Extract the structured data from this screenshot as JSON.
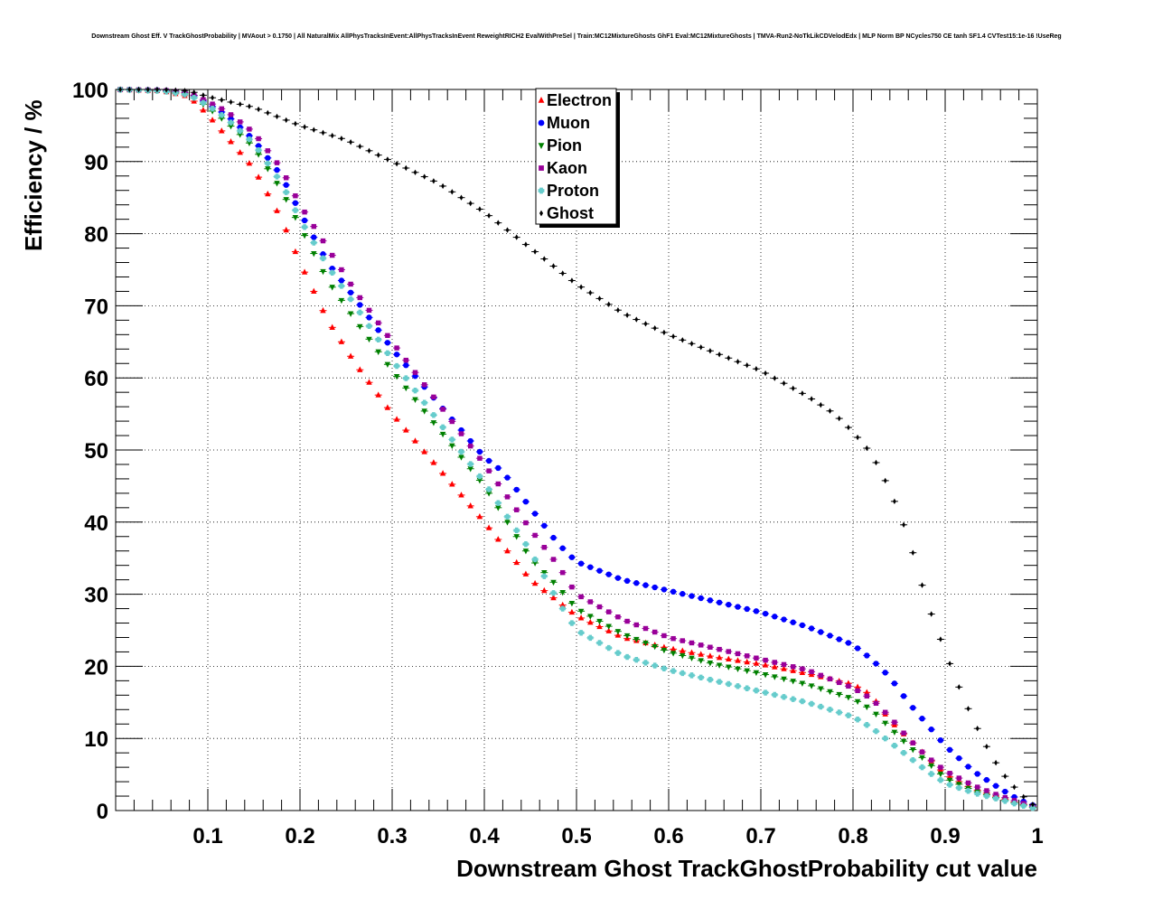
{
  "chart_data": {
    "type": "scatter",
    "title": "Downstream Ghost Eff. V TrackGhostProbability | MVAout > 0.1750 | All NaturalMix AllPhysTracksInEvent:AllPhysTracksInEvent ReweightRICH2 EvalWithPreSel | Train:MC12MixtureGhosts GhF1 Eval:MC12MixtureGhosts | TMVA-Run2-NoTkLikCDVelodEdx | MLP Norm BP NCycles750 CE tanh SF1.4 CVTest15:1e-16 !UseReg",
    "xlabel": "Downstream Ghost TrackGhostProbability cut value",
    "ylabel": "Efficiency / %",
    "xlim": [
      0,
      1
    ],
    "ylim": [
      0,
      100
    ],
    "xticks": [
      "0.1",
      "0.2",
      "0.3",
      "0.4",
      "0.5",
      "0.6",
      "0.7",
      "0.8",
      "0.9",
      "1"
    ],
    "yticks": [
      "0",
      "10",
      "20",
      "30",
      "40",
      "50",
      "60",
      "70",
      "80",
      "90",
      "100"
    ],
    "grid": true,
    "legend_position": "top-center",
    "series": [
      {
        "name": "Electron",
        "color": "#ff0000",
        "marker": "triangle-up",
        "knots": [
          [
            0,
            100
          ],
          [
            0.05,
            99.8
          ],
          [
            0.08,
            99
          ],
          [
            0.1,
            96.5
          ],
          [
            0.12,
            93.5
          ],
          [
            0.15,
            89
          ],
          [
            0.18,
            82
          ],
          [
            0.2,
            76
          ],
          [
            0.23,
            68
          ],
          [
            0.26,
            62
          ],
          [
            0.3,
            55
          ],
          [
            0.35,
            47.5
          ],
          [
            0.4,
            40
          ],
          [
            0.45,
            32
          ],
          [
            0.48,
            29
          ],
          [
            0.5,
            27
          ],
          [
            0.55,
            24
          ],
          [
            0.6,
            22.5
          ],
          [
            0.65,
            21.3
          ],
          [
            0.7,
            20.3
          ],
          [
            0.75,
            19
          ],
          [
            0.8,
            17.5
          ],
          [
            0.82,
            16
          ],
          [
            0.84,
            12.5
          ],
          [
            0.86,
            10
          ],
          [
            0.88,
            7.5
          ],
          [
            0.9,
            5
          ],
          [
            0.93,
            3
          ],
          [
            0.96,
            1.8
          ],
          [
            0.98,
            1
          ],
          [
            1,
            0.3
          ]
        ]
      },
      {
        "name": "Muon",
        "color": "#0000ff",
        "marker": "circle",
        "knots": [
          [
            0,
            100
          ],
          [
            0.05,
            99.9
          ],
          [
            0.08,
            99.5
          ],
          [
            0.1,
            98
          ],
          [
            0.12,
            96.5
          ],
          [
            0.15,
            93
          ],
          [
            0.18,
            88
          ],
          [
            0.2,
            83
          ],
          [
            0.23,
            76
          ],
          [
            0.26,
            71
          ],
          [
            0.3,
            64
          ],
          [
            0.35,
            56.5
          ],
          [
            0.4,
            49
          ],
          [
            0.42,
            47
          ],
          [
            0.45,
            42
          ],
          [
            0.48,
            37
          ],
          [
            0.5,
            34.5
          ],
          [
            0.55,
            32
          ],
          [
            0.6,
            30.5
          ],
          [
            0.65,
            29
          ],
          [
            0.7,
            27.5
          ],
          [
            0.75,
            25.5
          ],
          [
            0.8,
            23
          ],
          [
            0.82,
            21
          ],
          [
            0.84,
            18.5
          ],
          [
            0.86,
            15
          ],
          [
            0.88,
            12
          ],
          [
            0.9,
            9
          ],
          [
            0.93,
            5.5
          ],
          [
            0.96,
            3
          ],
          [
            0.98,
            1.5
          ],
          [
            1,
            0.5
          ]
        ]
      },
      {
        "name": "Pion",
        "color": "#008000",
        "marker": "triangle-down",
        "knots": [
          [
            0,
            100
          ],
          [
            0.05,
            99.8
          ],
          [
            0.08,
            99.3
          ],
          [
            0.1,
            97.5
          ],
          [
            0.12,
            95.5
          ],
          [
            0.15,
            92
          ],
          [
            0.18,
            86
          ],
          [
            0.2,
            81
          ],
          [
            0.23,
            73.5
          ],
          [
            0.26,
            68
          ],
          [
            0.3,
            61
          ],
          [
            0.35,
            53
          ],
          [
            0.4,
            45
          ],
          [
            0.45,
            35
          ],
          [
            0.48,
            31
          ],
          [
            0.5,
            28
          ],
          [
            0.55,
            24.5
          ],
          [
            0.6,
            22
          ],
          [
            0.65,
            20.3
          ],
          [
            0.7,
            19
          ],
          [
            0.75,
            17.5
          ],
          [
            0.8,
            15.5
          ],
          [
            0.82,
            14
          ],
          [
            0.84,
            11.5
          ],
          [
            0.86,
            9
          ],
          [
            0.88,
            6.8
          ],
          [
            0.9,
            4.5
          ],
          [
            0.93,
            2.8
          ],
          [
            0.96,
            1.6
          ],
          [
            0.98,
            0.9
          ],
          [
            1,
            0.3
          ]
        ]
      },
      {
        "name": "Kaon",
        "color": "#990099",
        "marker": "square",
        "knots": [
          [
            0,
            100
          ],
          [
            0.05,
            99.9
          ],
          [
            0.08,
            99.5
          ],
          [
            0.1,
            98.3
          ],
          [
            0.12,
            97
          ],
          [
            0.15,
            94
          ],
          [
            0.18,
            89
          ],
          [
            0.2,
            84
          ],
          [
            0.23,
            78
          ],
          [
            0.26,
            72
          ],
          [
            0.3,
            65
          ],
          [
            0.35,
            56.5
          ],
          [
            0.4,
            48
          ],
          [
            0.45,
            39
          ],
          [
            0.48,
            34
          ],
          [
            0.5,
            30
          ],
          [
            0.55,
            26.5
          ],
          [
            0.6,
            24
          ],
          [
            0.65,
            22.5
          ],
          [
            0.7,
            21
          ],
          [
            0.75,
            19.5
          ],
          [
            0.8,
            17
          ],
          [
            0.82,
            15.5
          ],
          [
            0.84,
            13
          ],
          [
            0.86,
            10
          ],
          [
            0.88,
            7.5
          ],
          [
            0.9,
            5.5
          ],
          [
            0.93,
            3.5
          ],
          [
            0.96,
            2
          ],
          [
            0.98,
            1.2
          ],
          [
            1,
            0.4
          ]
        ]
      },
      {
        "name": "Proton",
        "color": "#66cccc",
        "marker": "cross",
        "knots": [
          [
            0,
            100
          ],
          [
            0.05,
            99.8
          ],
          [
            0.08,
            99.2
          ],
          [
            0.1,
            97.8
          ],
          [
            0.12,
            96
          ],
          [
            0.15,
            92.5
          ],
          [
            0.18,
            87
          ],
          [
            0.2,
            82
          ],
          [
            0.23,
            75.5
          ],
          [
            0.26,
            70
          ],
          [
            0.3,
            62.5
          ],
          [
            0.35,
            54
          ],
          [
            0.4,
            45.5
          ],
          [
            0.45,
            36
          ],
          [
            0.48,
            29
          ],
          [
            0.5,
            25
          ],
          [
            0.55,
            21.5
          ],
          [
            0.6,
            19.5
          ],
          [
            0.65,
            18
          ],
          [
            0.7,
            16.5
          ],
          [
            0.75,
            15
          ],
          [
            0.8,
            13
          ],
          [
            0.82,
            11.5
          ],
          [
            0.84,
            9.5
          ],
          [
            0.86,
            7.5
          ],
          [
            0.88,
            5.5
          ],
          [
            0.9,
            3.8
          ],
          [
            0.93,
            2.5
          ],
          [
            0.96,
            1.5
          ],
          [
            0.98,
            0.8
          ],
          [
            1,
            0.2
          ]
        ]
      },
      {
        "name": "Ghost",
        "color": "#000000",
        "marker": "diamond",
        "knots": [
          [
            0,
            100
          ],
          [
            0.05,
            100
          ],
          [
            0.08,
            99.8
          ],
          [
            0.1,
            99
          ],
          [
            0.15,
            97.5
          ],
          [
            0.2,
            95
          ],
          [
            0.25,
            93
          ],
          [
            0.3,
            90
          ],
          [
            0.35,
            87
          ],
          [
            0.4,
            83
          ],
          [
            0.45,
            78
          ],
          [
            0.5,
            73
          ],
          [
            0.55,
            69
          ],
          [
            0.6,
            66
          ],
          [
            0.65,
            63.5
          ],
          [
            0.7,
            61
          ],
          [
            0.75,
            57.5
          ],
          [
            0.78,
            55
          ],
          [
            0.8,
            52.5
          ],
          [
            0.82,
            49.5
          ],
          [
            0.84,
            44.5
          ],
          [
            0.86,
            38
          ],
          [
            0.87,
            33.5
          ],
          [
            0.88,
            29
          ],
          [
            0.9,
            22
          ],
          [
            0.92,
            15.5
          ],
          [
            0.94,
            10
          ],
          [
            0.96,
            5.5
          ],
          [
            0.98,
            2.5
          ],
          [
            0.99,
            1.3
          ],
          [
            1,
            0.4
          ]
        ]
      }
    ]
  }
}
